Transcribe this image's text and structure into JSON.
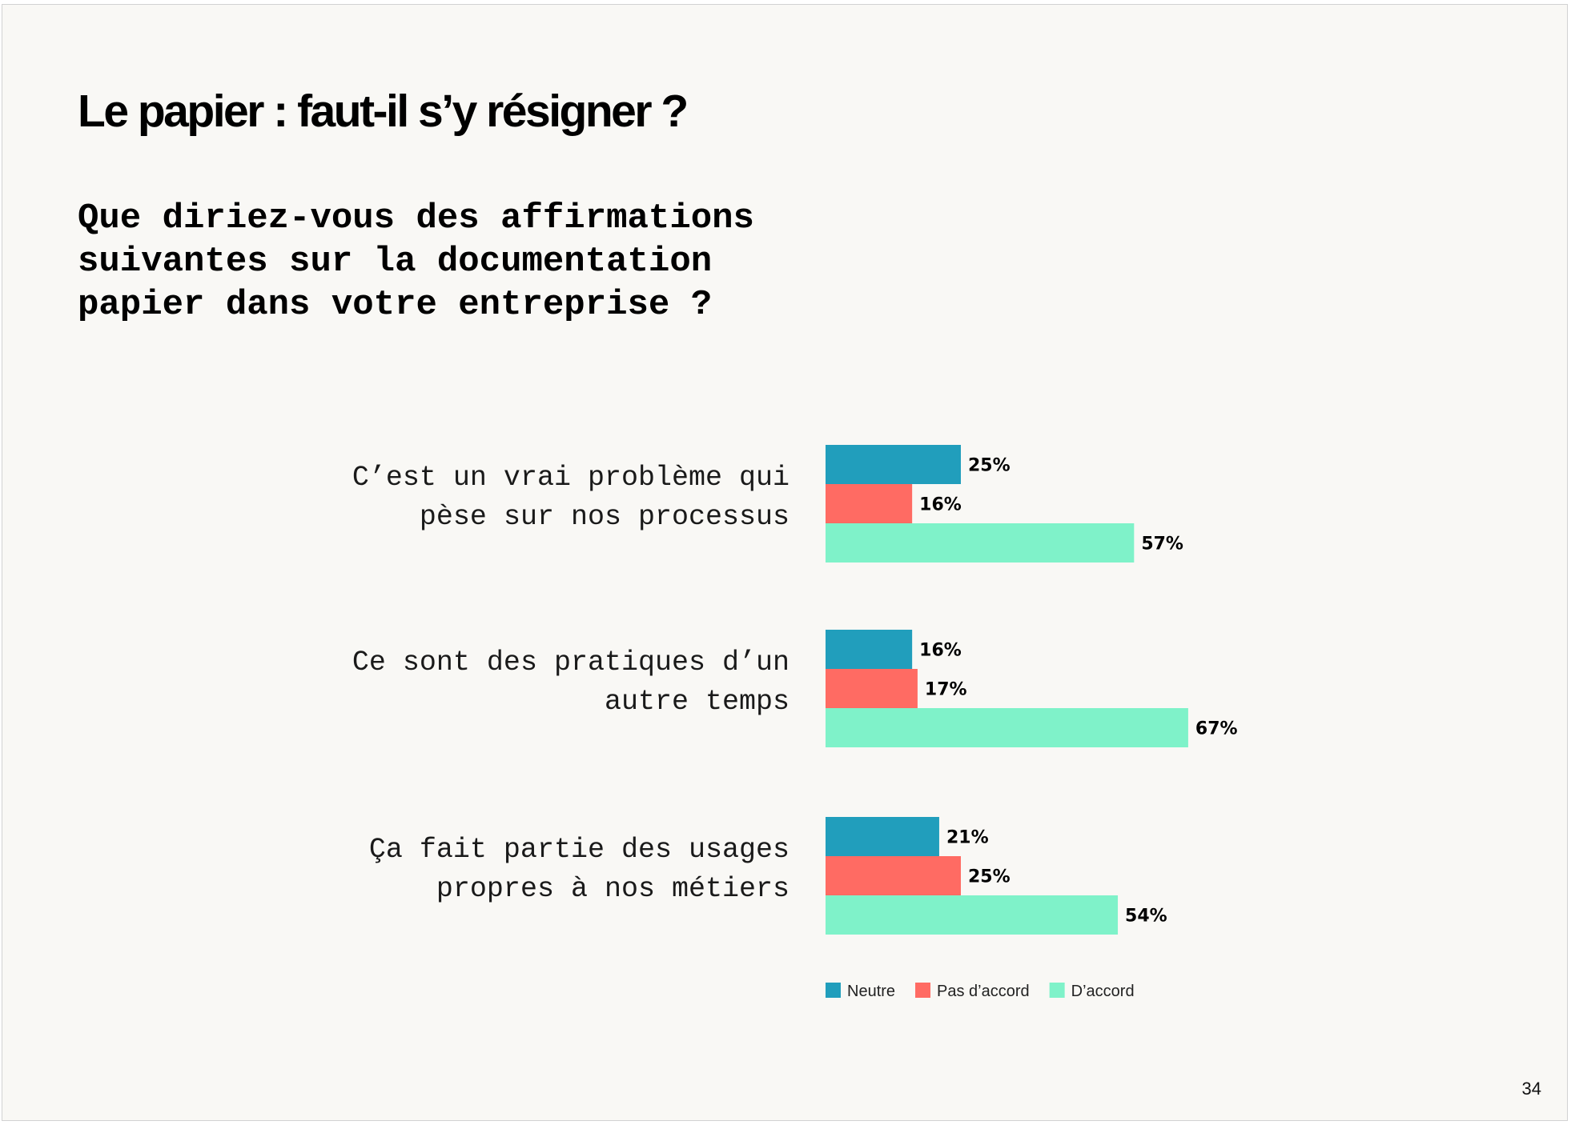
{
  "page": {
    "title": "Le papier : faut-il s’y résigner ?",
    "question": "Que diriez-vous des affirmations suivantes sur la documentation papier dans votre entreprise ?",
    "page_number": "34"
  },
  "chart_data": {
    "type": "bar",
    "orientation": "horizontal",
    "categories": [
      [
        "C’est un vrai problème qui",
        "pèse sur nos processus"
      ],
      [
        "Ce sont des pratiques d’un",
        "autre temps"
      ],
      [
        "Ça fait partie des usages",
        "propres à nos métiers"
      ]
    ],
    "series": [
      {
        "name": "Neutre",
        "color": "#219ebc",
        "values": [
          25,
          16,
          21
        ]
      },
      {
        "name": "Pas d’accord",
        "color": "#ff6b63",
        "values": [
          16,
          17,
          25
        ]
      },
      {
        "name": "D’accord",
        "color": "#7ff2c9",
        "values": [
          57,
          67,
          54
        ]
      }
    ],
    "value_suffix": "%",
    "legend_position": "bottom",
    "grid": false,
    "axes_visible": false
  }
}
